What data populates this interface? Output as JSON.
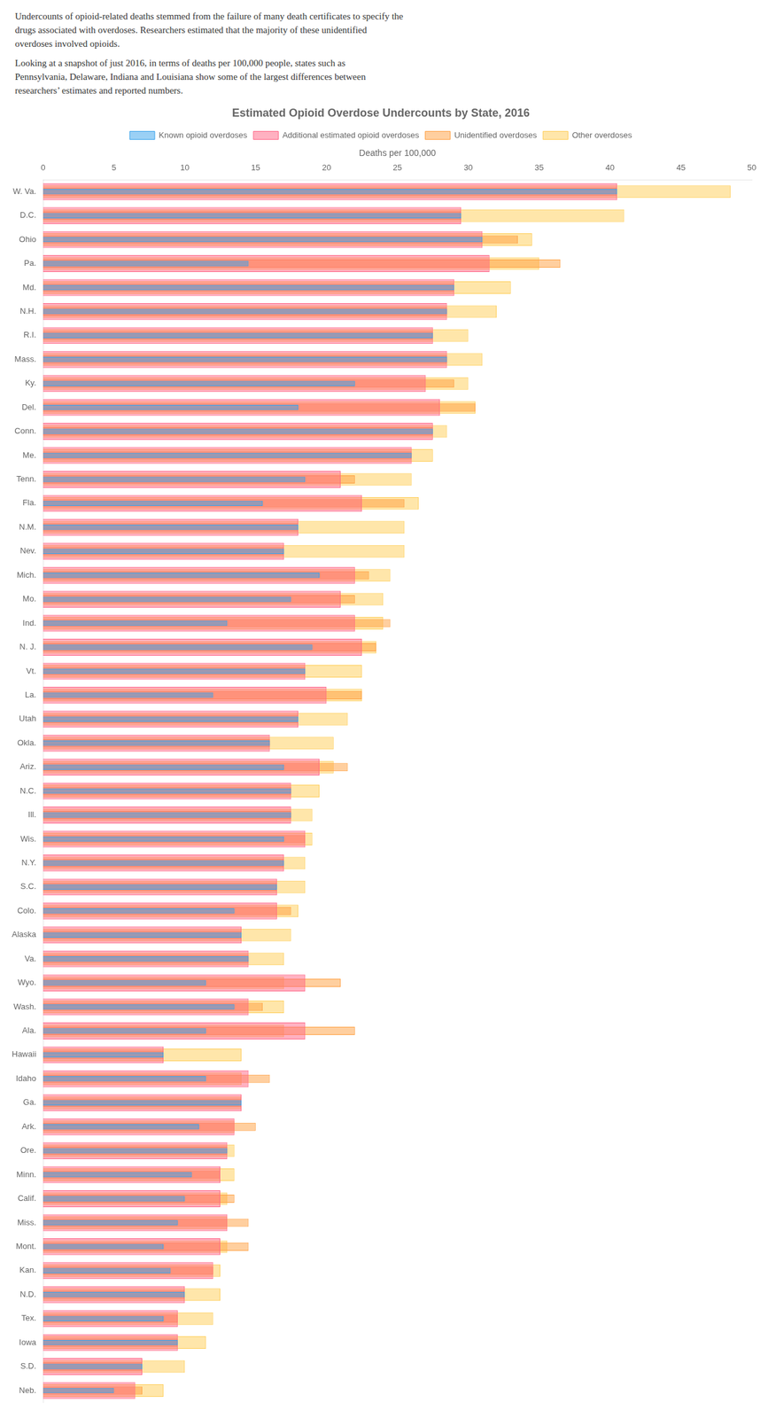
{
  "chart_data": {
    "type": "bar",
    "orientation": "horizontal",
    "stacked": false,
    "title": "Estimated Opioid Overdose Undercounts by State, 2016",
    "annotations": [
      "Undercounts of opioid-related deaths stemmed from the failure of many death certificates to specify the\ndrugs associated with overdoses. Researchers estimated that the majority of these unidentified\noverdoses involved opioids.",
      "Looking at a snapshot of just 2016, in terms of deaths per 100,000 people, states such as",
      "Pennsylvania, Delaware, Indiana and Louisiana show some of the largest differences between",
      "researchers’ estimates and reported numbers."
    ],
    "xlabel": "Deaths per 100,000",
    "xlim": [
      0,
      50
    ],
    "xticks": [
      0,
      5,
      10,
      15,
      20,
      25,
      30,
      35,
      40,
      45,
      50
    ],
    "grid": false,
    "legend": "top",
    "categories": [
      "W. Va.",
      "D.C.",
      "Ohio",
      "Pa.",
      "Md.",
      "N.H.",
      "R.I.",
      "Mass.",
      "Ky.",
      "Del.",
      "Conn.",
      "Me.",
      "Tenn.",
      "Fla.",
      "N.M.",
      "Nev.",
      "Mich.",
      "Mo.",
      "Ind.",
      "N. J.",
      "Vt.",
      "La.",
      "Utah",
      "Okla.",
      "Ariz.",
      "N.C.",
      "Ill.",
      "Wis.",
      "N.Y.",
      "S.C.",
      "Colo.",
      "Alaska",
      "Va.",
      "Wyo.",
      "Wash.",
      "Ala.",
      "Hawaii",
      "Idaho",
      "Ga.",
      "Ark.",
      "Ore.",
      "Minn.",
      "Calif.",
      "Miss.",
      "Mont.",
      "Kan.",
      "N.D.",
      "Tex.",
      "Iowa",
      "S.D.",
      "Neb."
    ],
    "series": [
      {
        "name": "Known opioid overdoses",
        "values": [
          40.5,
          29.5,
          31.0,
          14.5,
          29.0,
          28.5,
          27.5,
          28.5,
          22.0,
          18.0,
          27.5,
          26.0,
          18.5,
          15.5,
          18.0,
          17.0,
          19.5,
          17.5,
          13.0,
          19.0,
          18.5,
          12.0,
          18.0,
          16.0,
          17.0,
          17.5,
          17.5,
          17.0,
          17.0,
          16.5,
          13.5,
          14.0,
          14.5,
          11.5,
          13.5,
          11.5,
          8.5,
          11.5,
          14.0,
          11.0,
          13.0,
          10.5,
          10.0,
          9.5,
          8.5,
          9.0,
          10.0,
          8.5,
          9.5,
          7.0,
          5.0
        ]
      },
      {
        "name": "Additional estimated opioid overdoses",
        "values": [
          40.5,
          29.5,
          31.0,
          31.5,
          29.0,
          28.5,
          27.5,
          28.5,
          27.0,
          28.0,
          27.5,
          26.0,
          21.0,
          22.5,
          18.0,
          17.0,
          22.0,
          21.0,
          22.0,
          22.5,
          18.5,
          20.0,
          18.0,
          16.0,
          19.5,
          17.5,
          17.5,
          18.5,
          17.0,
          16.5,
          16.5,
          14.0,
          14.5,
          18.5,
          14.5,
          18.5,
          8.5,
          14.5,
          14.0,
          13.5,
          13.0,
          12.5,
          12.5,
          13.0,
          12.5,
          12.0,
          10.0,
          9.5,
          9.5,
          7.0,
          6.5
        ]
      },
      {
        "name": "Unidentified overdoses",
        "values": [
          40.5,
          29.5,
          33.5,
          36.5,
          29.0,
          28.5,
          27.5,
          28.5,
          29.0,
          30.5,
          27.5,
          26.0,
          22.0,
          25.5,
          18.0,
          17.0,
          23.0,
          22.0,
          24.5,
          23.5,
          18.5,
          22.5,
          18.0,
          16.0,
          21.5,
          17.5,
          17.5,
          18.5,
          17.0,
          16.5,
          17.5,
          14.0,
          14.5,
          21.0,
          15.5,
          22.0,
          8.5,
          16.0,
          14.0,
          15.0,
          13.0,
          12.5,
          13.5,
          14.5,
          14.5,
          12.0,
          10.0,
          9.5,
          9.5,
          7.0,
          7.0
        ]
      },
      {
        "name": "Other overdoses",
        "values": [
          48.5,
          41.0,
          34.5,
          35.0,
          33.0,
          32.0,
          30.0,
          31.0,
          30.0,
          30.5,
          28.5,
          27.5,
          26.0,
          26.5,
          25.5,
          25.5,
          24.5,
          24.0,
          24.0,
          23.5,
          22.5,
          22.5,
          21.5,
          20.5,
          20.5,
          19.5,
          19.0,
          19.0,
          18.5,
          18.5,
          18.0,
          17.5,
          17.0,
          17.0,
          17.0,
          17.0,
          14.0,
          14.0,
          14.0,
          13.5,
          13.5,
          13.5,
          13.0,
          13.0,
          13.0,
          12.5,
          12.5,
          12.0,
          11.5,
          10.0,
          8.5
        ]
      }
    ]
  }
}
